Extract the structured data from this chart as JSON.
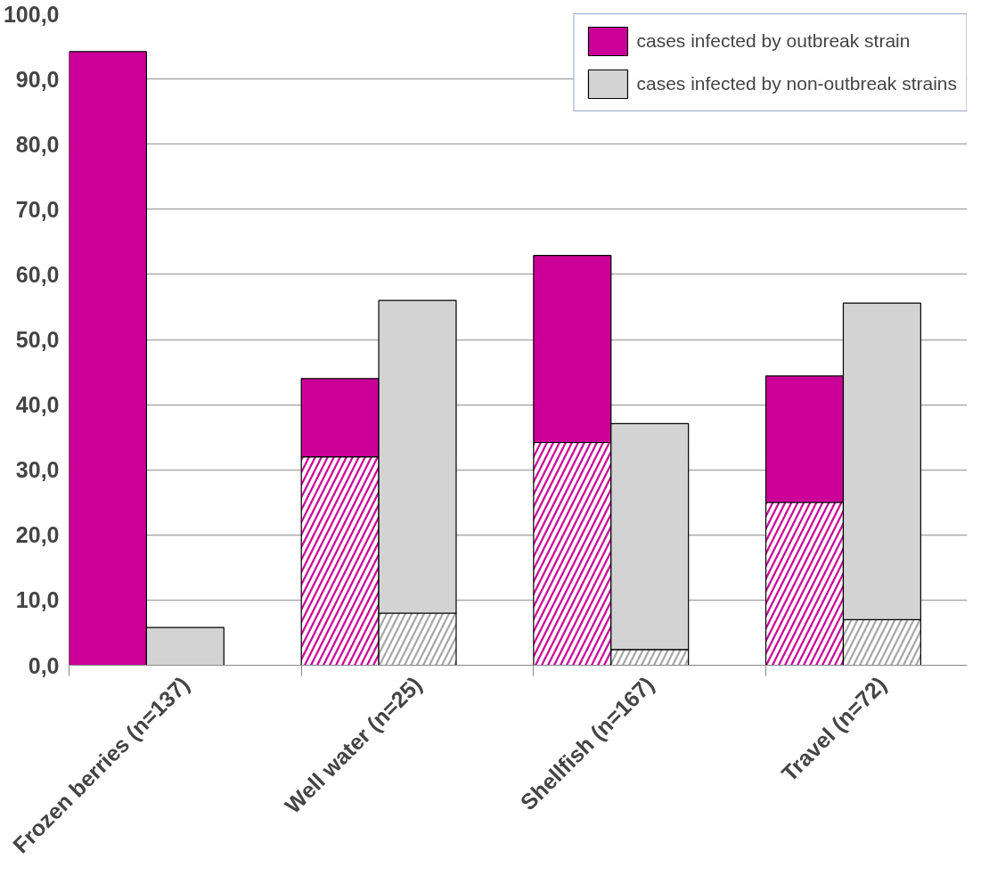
{
  "chart_data": {
    "type": "bar",
    "stacked": true,
    "categories": [
      null,
      "Frozen berries (n=137)",
      null,
      null,
      "Well water (n=25)",
      null,
      null,
      "Shellfish (n=167)",
      null,
      null,
      "Travel (n=72)",
      null
    ],
    "series": [
      {
        "color": "#cc0099",
        "values": [
          null,
          null,
          null,
          32.0,
          null,
          null,
          34.2,
          null,
          null,
          25.0,
          null,
          null
        ]
      },
      {
        "name": "cases infected by outbreak strain",
        "color": "#cc0099",
        "values": [
          94.2,
          null,
          null,
          12.0,
          null,
          null,
          28.7,
          null,
          null,
          19.4,
          null,
          null
        ]
      },
      {
        "color": "#a6a6a6",
        "values": [
          null,
          null,
          null,
          null,
          8.0,
          null,
          null,
          2.4,
          null,
          null,
          7.0,
          null
        ]
      },
      {
        "name": "cases infected by non-outbreak strains",
        "color": "#d3d3d3",
        "values": [
          null,
          5.8,
          null,
          null,
          48.0,
          null,
          null,
          34.7,
          null,
          null,
          48.6,
          null
        ]
      }
    ],
    "ylim": [
      0,
      100
    ],
    "yticks": [
      {
        "value": 0,
        "label": "0,0"
      },
      {
        "value": 10,
        "label": "10,0"
      },
      {
        "value": 20,
        "label": "20,0"
      },
      {
        "value": 30,
        "label": "30,0"
      },
      {
        "value": 40,
        "label": "40,0"
      },
      {
        "value": 50,
        "label": "50,0"
      },
      {
        "value": 60,
        "label": "60,0"
      },
      {
        "value": 70,
        "label": "70,0"
      },
      {
        "value": 80,
        "label": "80,0"
      },
      {
        "value": 90,
        "label": "90,0"
      },
      {
        "value": 100,
        "label": "100,0"
      }
    ],
    "grid": "y",
    "legend": "top right"
  }
}
